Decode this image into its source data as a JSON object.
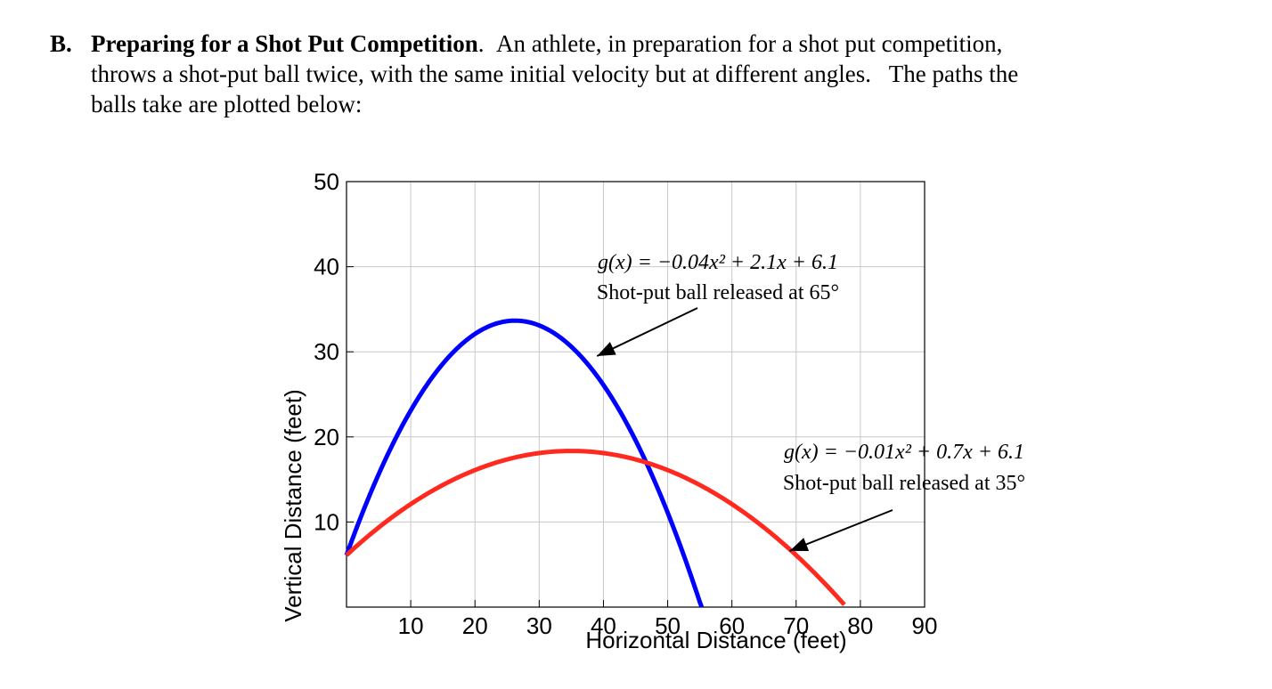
{
  "problem": {
    "letter": "B.",
    "title": "Preparing for a Shot Put Competition",
    "title_punct": ".",
    "line1_rest": "An athlete, in preparation for a shot put competition,",
    "line2": "throws a shot-put ball twice, with the same initial velocity but at different angles.   The paths the",
    "line3": "balls take are plotted below:"
  },
  "chart_data": {
    "type": "line",
    "xlabel": "Horizontal Distance (feet)",
    "ylabel": "Vertical Distance (feet)",
    "xlim": [
      0,
      90
    ],
    "ylim": [
      0,
      50
    ],
    "xticks": [
      10,
      20,
      30,
      40,
      50,
      60,
      70,
      80,
      90
    ],
    "yticks": [
      10,
      20,
      30,
      40,
      50
    ],
    "grid": true,
    "series": [
      {
        "color": "#0000ff",
        "equation": "g(x) = -0.04x^2 + 2.1x + 6.1",
        "coefficients": [
          -0.04,
          2.1,
          6.1
        ],
        "x_range": [
          0,
          55.3
        ]
      },
      {
        "color": "#ff2a1f",
        "equation": "g(x) = -0.01x^2 + 0.7x + 6.1",
        "coefficients": [
          -0.01,
          0.7,
          6.1
        ],
        "x_range": [
          0,
          77.5
        ]
      }
    ],
    "annotations": [
      {
        "equation": "g(x) = −0.04x² + 2.1x + 6.1",
        "label": "Shot-put ball released at 65°",
        "arrow_to": [
          39,
          29.5
        ]
      },
      {
        "equation": "g(x) = −0.01x² + 0.7x + 6.1",
        "label": "Shot-put ball released at 35°",
        "arrow_to": [
          69,
          6.6
        ]
      }
    ]
  }
}
